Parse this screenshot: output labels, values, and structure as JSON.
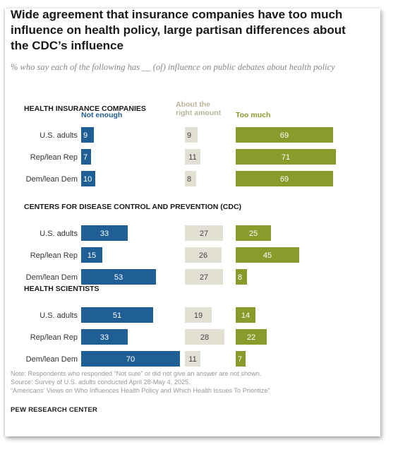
{
  "title": "Wide agreement that insurance companies have too much influence on health policy, large partisan differences about the CDC’s influence",
  "subtitle": "% who say each of the following has __ (of) influence on public debates about health policy",
  "notes": [
    "Note: Respondents who responded “Not sure” or did not give an answer are not shown.",
    "Source: Survey of U.S. adults conducted April 28-May 4, 2025.",
    "“Americans’ Views on Who Influences Health Policy and Which Health Issues To Prioritize”"
  ],
  "logo": "PEW RESEARCH CENTER",
  "colors": {
    "not_enough": "#1f5f95",
    "right_amount": "#e2dfd3",
    "too_much": "#8a9a2b",
    "right_amount_text": "#444444"
  },
  "chart_data": {
    "type": "bar",
    "orientation": "horizontal",
    "column_headers": {
      "not_enough": "Not enough",
      "right_amount": "About the right amount",
      "too_much": "Too much"
    },
    "groups": [
      {
        "name": "HEALTH INSURANCE COMPANIES",
        "rows": [
          {
            "label": "U.S. adults",
            "not_enough": 9,
            "right_amount": 9,
            "too_much": 69
          },
          {
            "label": "Rep/lean Rep",
            "not_enough": 7,
            "right_amount": 11,
            "too_much": 71
          },
          {
            "label": "Dem/lean Dem",
            "not_enough": 10,
            "right_amount": 8,
            "too_much": 69
          }
        ]
      },
      {
        "name": "CENTERS FOR DISEASE CONTROL AND PREVENTION (CDC)",
        "rows": [
          {
            "label": "U.S. adults",
            "not_enough": 33,
            "right_amount": 27,
            "too_much": 25
          },
          {
            "label": "Rep/lean Rep",
            "not_enough": 15,
            "right_amount": 26,
            "too_much": 45
          },
          {
            "label": "Dem/lean Dem",
            "not_enough": 53,
            "right_amount": 27,
            "too_much": 8
          }
        ]
      },
      {
        "name": "HEALTH SCIENTISTS",
        "rows": [
          {
            "label": "U.S. adults",
            "not_enough": 51,
            "right_amount": 19,
            "too_much": 14
          },
          {
            "label": "Rep/lean Rep",
            "not_enough": 33,
            "right_amount": 28,
            "too_much": 22
          },
          {
            "label": "Dem/lean Dem",
            "not_enough": 70,
            "right_amount": 11,
            "too_much": 7
          }
        ]
      }
    ]
  }
}
